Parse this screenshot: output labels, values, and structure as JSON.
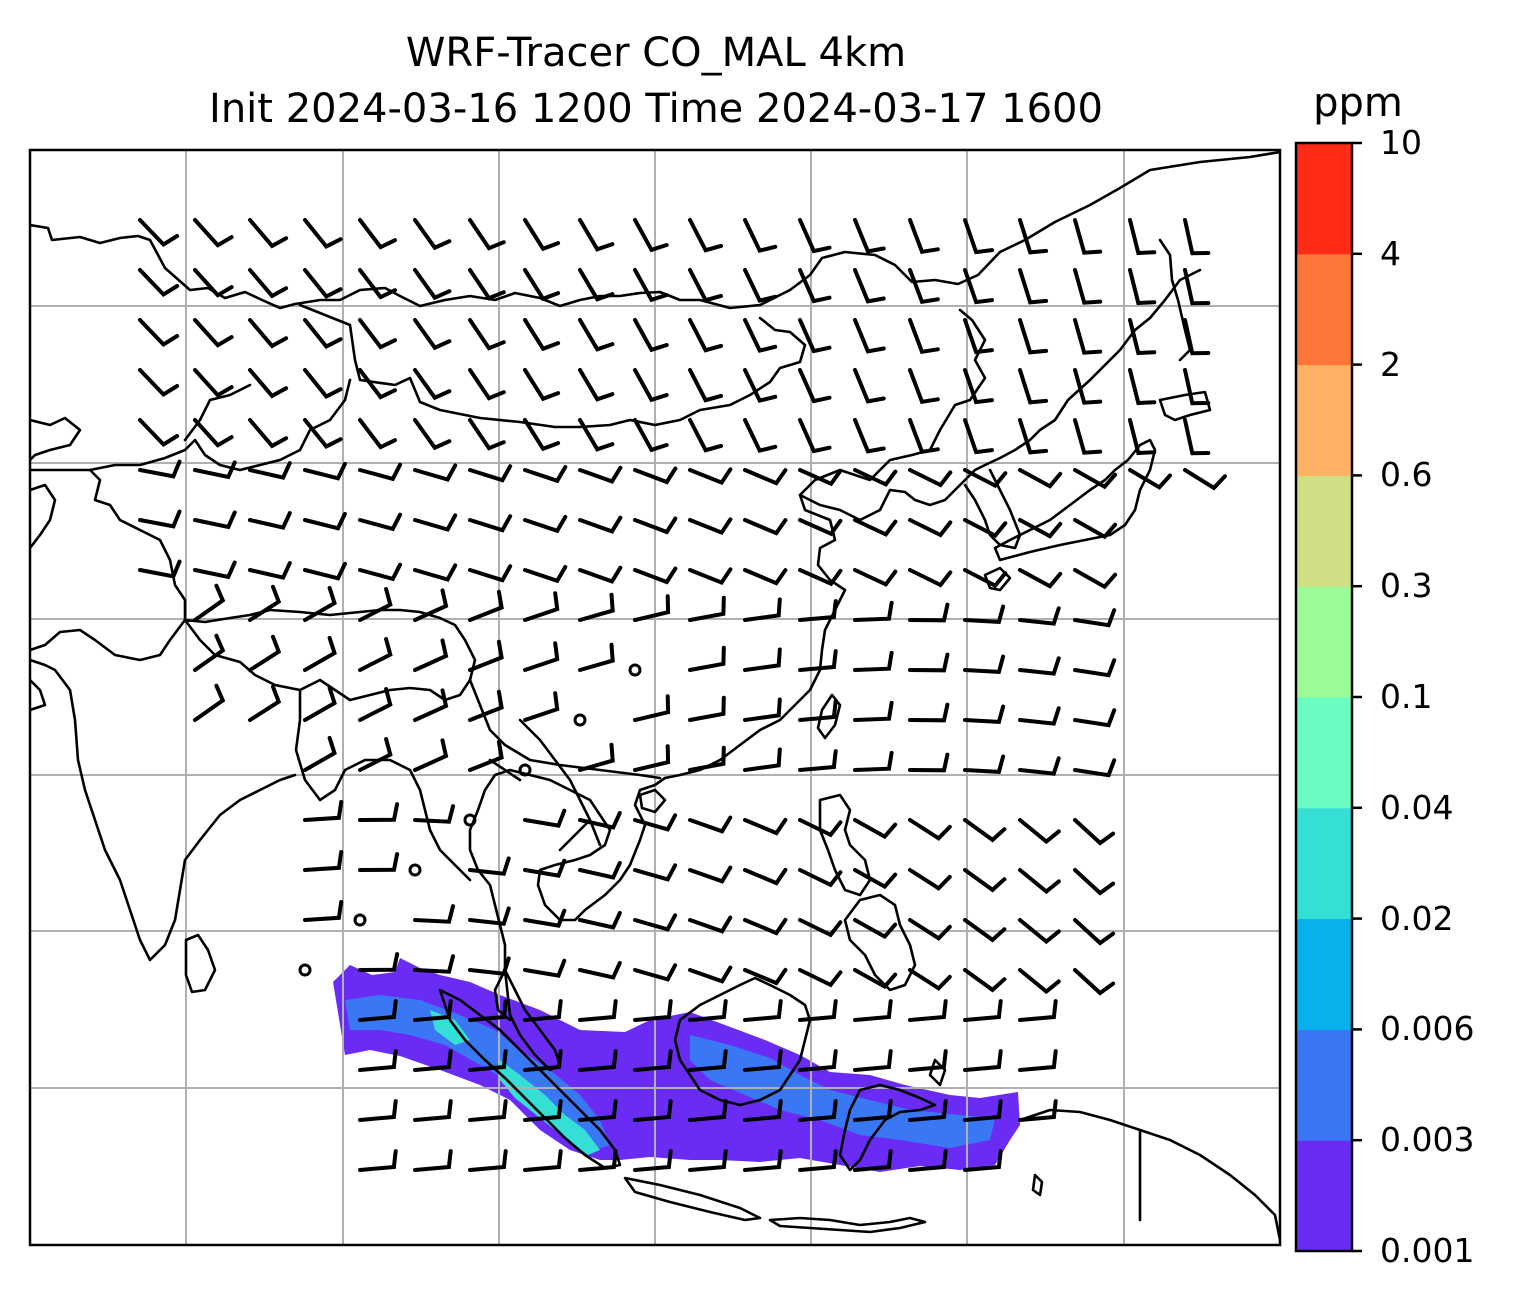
{
  "title_line1": "WRF-Tracer CO_MAL 4km",
  "title_line2": "Init 2024-03-16 1200 Time 2024-03-17 1600",
  "colorbar": {
    "unit": "ppm",
    "levels": [
      "0.001",
      "0.003",
      "0.006",
      "0.02",
      "0.04",
      "0.1",
      "0.3",
      "0.6",
      "2",
      "4",
      "10"
    ],
    "colors": [
      "#6a2cf5",
      "#3a77f5",
      "#08b0ec",
      "#35dfd5",
      "#6afcc0",
      "#9bfb98",
      "#d0df84",
      "#feb163",
      "#ff7639",
      "#ff2b16"
    ]
  },
  "colors": {
    "coastline": "#000000",
    "gridline": "#b0b0b0",
    "wind_barb": "#000000",
    "tracer_low": "#6a2cf5",
    "tracer_mid": "#3a77f5",
    "tracer_high": "#35dfd5"
  },
  "map": {
    "gridlines": true,
    "overlay": "wind-barbs",
    "field": "CO tracer concentration (filled contours)"
  }
}
